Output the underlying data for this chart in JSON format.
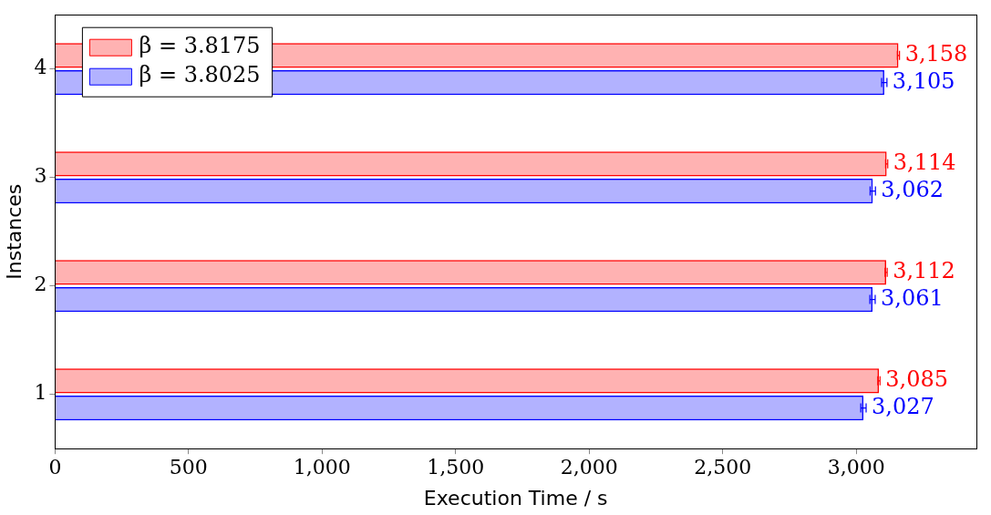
{
  "chart_data": {
    "type": "bar",
    "orientation": "horizontal",
    "xlabel": "Execution Time / s",
    "ylabel": "Instances",
    "categories": [
      "4",
      "3",
      "2",
      "1"
    ],
    "series": [
      {
        "name": "β = 3.8175",
        "color": "#ff0000",
        "values": [
          3158,
          3114,
          3112,
          3085
        ],
        "value_labels": [
          "3,158",
          "3,114",
          "3,112",
          "3,085"
        ],
        "errors": [
          4,
          4,
          4,
          4
        ]
      },
      {
        "name": "β = 3.8025",
        "color": "#0000ff",
        "values": [
          3105,
          3062,
          3061,
          3027
        ],
        "value_labels": [
          "3,105",
          "3,062",
          "3,061",
          "3,027"
        ],
        "errors": [
          10,
          10,
          10,
          10
        ]
      }
    ],
    "xlim": [
      0,
      3450
    ],
    "xticks": [
      0,
      500,
      {
        "value": 1000,
        "label": "1,000"
      },
      {
        "value": 1500,
        "label": "1,500"
      },
      {
        "value": 2000,
        "label": "2,000"
      },
      {
        "value": 2500,
        "label": "2,500"
      },
      {
        "value": 3000,
        "label": "3,000"
      }
    ],
    "legend": "top left",
    "grid": false
  }
}
